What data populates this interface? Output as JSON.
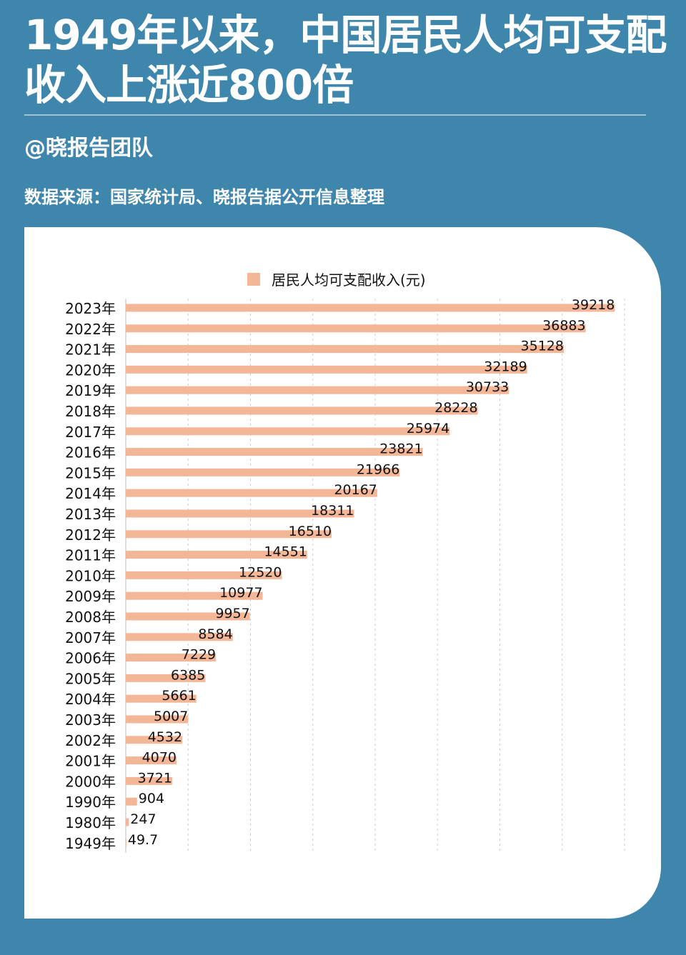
{
  "header": {
    "title": "1949年以来，中国居民人均可支配收入上涨近800倍",
    "author": "@晓报告团队",
    "source": "数据来源：国家统计局、晓报告据公开信息整理"
  },
  "colors": {
    "background": "#3f86ad",
    "card": "#ffffff",
    "bar": "#f3b697",
    "grid": "#cccccc",
    "text": "#111111"
  },
  "chart_data": {
    "type": "bar",
    "orientation": "horizontal",
    "title": "",
    "xlabel": "",
    "ylabel": "",
    "legend": [
      "居民人均可支配收入(元)"
    ],
    "legend_position": "top",
    "grid": "vertical dashed",
    "xlim": [
      0,
      40000
    ],
    "categories": [
      "2023年",
      "2022年",
      "2021年",
      "2020年",
      "2019年",
      "2018年",
      "2017年",
      "2016年",
      "2015年",
      "2014年",
      "2013年",
      "2012年",
      "2011年",
      "2010年",
      "2009年",
      "2008年",
      "2007年",
      "2006年",
      "2005年",
      "2004年",
      "2003年",
      "2002年",
      "2001年",
      "2000年",
      "1990年",
      "1980年",
      "1949年"
    ],
    "series": [
      {
        "name": "居民人均可支配收入(元)",
        "values": [
          39218,
          36883,
          35128,
          32189,
          30733,
          28228,
          25974,
          23821,
          21966,
          20167,
          18311,
          16510,
          14551,
          12520,
          10977,
          9957,
          8584,
          7229,
          6385,
          5661,
          5007,
          4532,
          4070,
          3721,
          904,
          247,
          49.7
        ],
        "labels": [
          "39218",
          "36883",
          "35128",
          "32189",
          "30733",
          "28228",
          "25974",
          "23821",
          "21966",
          "20167",
          "18311",
          "16510",
          "14551",
          "12520",
          "10977",
          "9957",
          "8584",
          "7229",
          "6385",
          "5661",
          "5007",
          "4532",
          "4070",
          "3721",
          "904",
          "247",
          "49.7"
        ]
      }
    ]
  }
}
